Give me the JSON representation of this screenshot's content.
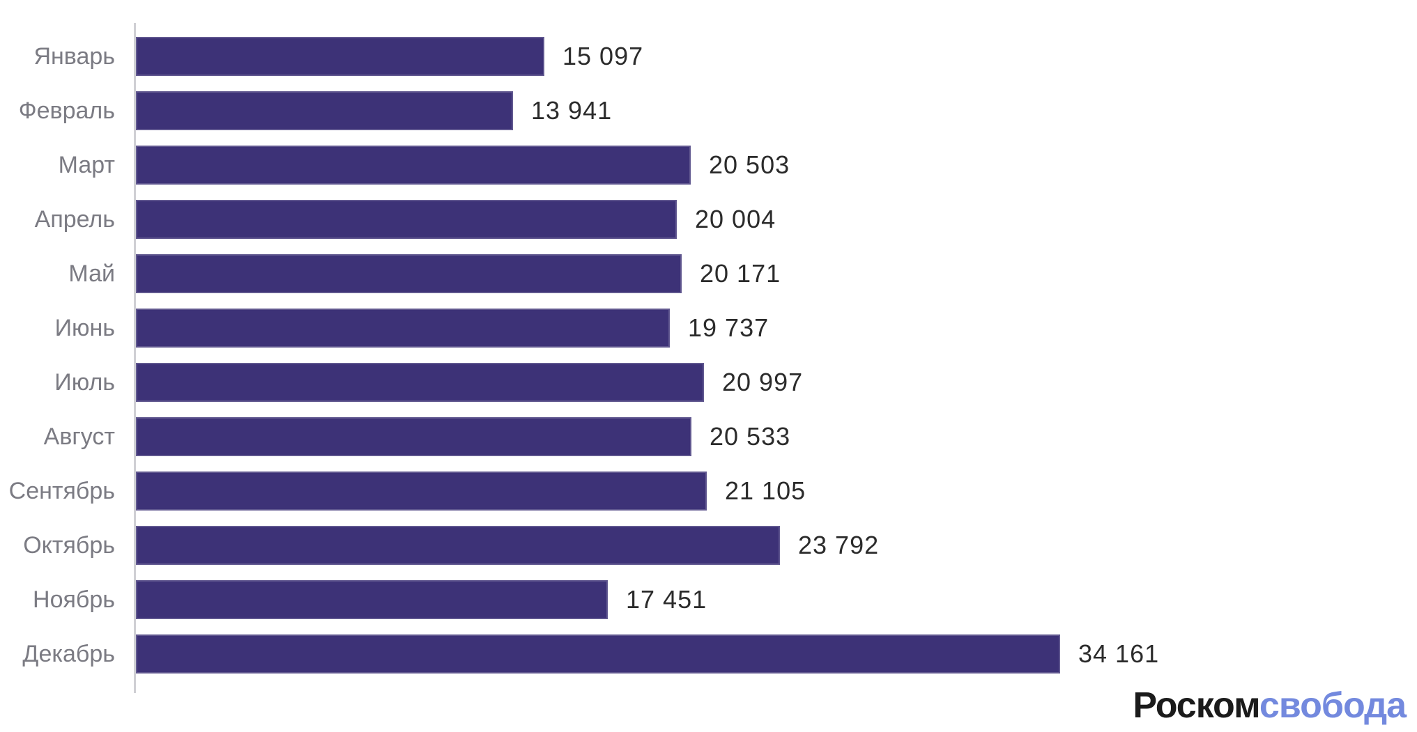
{
  "chart_data": {
    "type": "bar",
    "orientation": "horizontal",
    "title": "",
    "xlabel": "",
    "ylabel": "",
    "categories": [
      "Январь",
      "Февраль",
      "Март",
      "Апрель",
      "Май",
      "Июнь",
      "Июль",
      "Август",
      "Сентябрь",
      "Октябрь",
      "Ноябрь",
      "Декабрь"
    ],
    "values": [
      15097,
      13941,
      20503,
      20004,
      20171,
      19737,
      20997,
      20533,
      21105,
      23792,
      17451,
      34161
    ],
    "value_labels": [
      "15 097",
      "13 941",
      "20 503",
      "20 004",
      "20 171",
      "19 737",
      "20 997",
      "20 533",
      "21 105",
      "23 792",
      "17 451",
      "34 161"
    ],
    "xlim": [
      0,
      34161
    ],
    "grid": false,
    "legend": null,
    "data_labels": "outside-end"
  },
  "colors": {
    "bar": "#3d3277",
    "category_label": "#7b7b83",
    "value_label": "#2b2b2b",
    "axis_line": "#cfcfd4",
    "background": "#ffffff",
    "logo_primary": "#1b1b1b",
    "logo_accent": "#7389de"
  },
  "logo": {
    "primary": "Роском",
    "accent": "свобода"
  }
}
